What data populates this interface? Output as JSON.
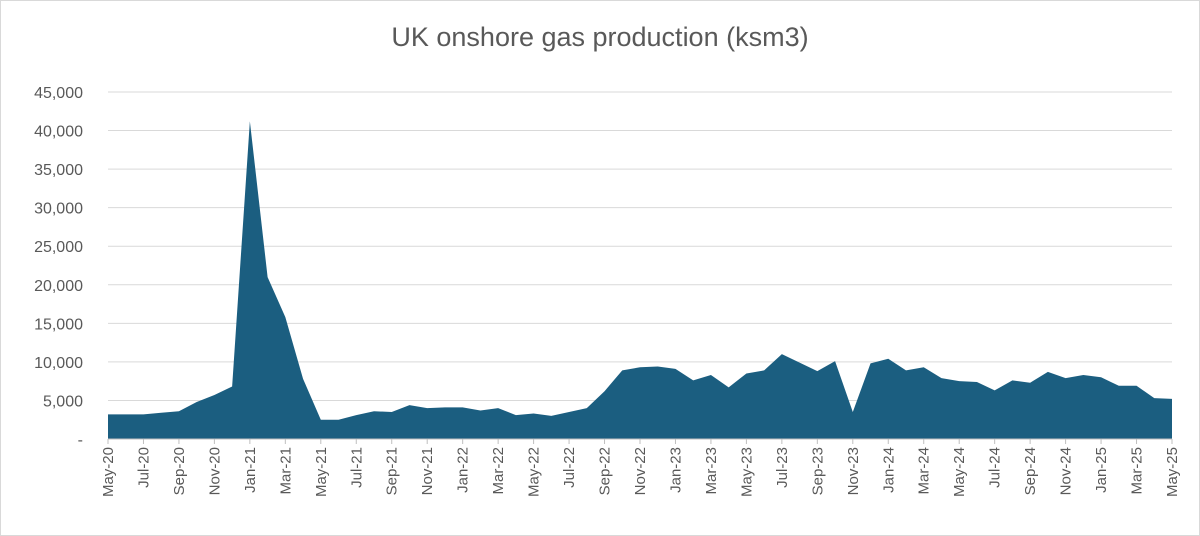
{
  "chart_data": {
    "type": "area",
    "title": "UK onshore gas production (ksm3)",
    "xlabel": "",
    "ylabel": "",
    "ylim": [
      0,
      45000
    ],
    "yticks": [
      0,
      5000,
      10000,
      15000,
      20000,
      25000,
      30000,
      35000,
      40000,
      45000
    ],
    "ytick_labels": [
      "-",
      "5,000",
      "10,000",
      "15,000",
      "20,000",
      "25,000",
      "30,000",
      "35,000",
      "40,000",
      "45,000"
    ],
    "x_tick_labels": [
      "May-20",
      "Jul-20",
      "Sep-20",
      "Nov-20",
      "Jan-21",
      "Mar-21",
      "May-21",
      "Jul-21",
      "Sep-21",
      "Nov-21",
      "Jan-22",
      "Mar-22",
      "May-22",
      "Jul-22",
      "Sep-22",
      "Nov-22",
      "Jan-23",
      "Mar-23",
      "May-23",
      "Jul-23",
      "Sep-23",
      "Nov-23",
      "Jan-24",
      "Mar-24",
      "May-24",
      "Jul-24",
      "Sep-24",
      "Nov-24",
      "Jan-25",
      "Mar-25",
      "May-25"
    ],
    "grid": true,
    "legend": "none",
    "color": "#1b5e80",
    "x": [
      "May-20",
      "Jun-20",
      "Jul-20",
      "Aug-20",
      "Sep-20",
      "Oct-20",
      "Nov-20",
      "Dec-20",
      "Jan-21",
      "Feb-21",
      "Mar-21",
      "Apr-21",
      "May-21",
      "Jun-21",
      "Jul-21",
      "Aug-21",
      "Sep-21",
      "Oct-21",
      "Nov-21",
      "Dec-21",
      "Jan-22",
      "Feb-22",
      "Mar-22",
      "Apr-22",
      "May-22",
      "Jun-22",
      "Jul-22",
      "Aug-22",
      "Sep-22",
      "Oct-22",
      "Nov-22",
      "Dec-22",
      "Jan-23",
      "Feb-23",
      "Mar-23",
      "Apr-23",
      "May-23",
      "Jun-23",
      "Jul-23",
      "Aug-23",
      "Sep-23",
      "Oct-23",
      "Nov-23",
      "Dec-23",
      "Jan-24",
      "Feb-24",
      "Mar-24",
      "Apr-24",
      "May-24",
      "Jun-24",
      "Jul-24",
      "Aug-24",
      "Sep-24",
      "Oct-24",
      "Nov-24",
      "Dec-24",
      "Jan-25",
      "Feb-25",
      "Mar-25",
      "Apr-25",
      "May-25"
    ],
    "values": [
      3200,
      3200,
      3200,
      3400,
      3600,
      4800,
      5700,
      6800,
      41200,
      21000,
      15800,
      7800,
      2500,
      2500,
      3100,
      3600,
      3500,
      4400,
      4000,
      4100,
      4100,
      3700,
      4000,
      3100,
      3300,
      3000,
      3500,
      4000,
      6200,
      8900,
      9300,
      9400,
      9100,
      7600,
      8300,
      6700,
      8500,
      8900,
      11000,
      9900,
      8800,
      10100,
      3500,
      9800,
      10400,
      8900,
      9300,
      7900,
      7500,
      7400,
      6300,
      7600,
      7300,
      8700,
      7900,
      8300,
      8000,
      6900,
      6900,
      5300,
      5200
    ]
  }
}
